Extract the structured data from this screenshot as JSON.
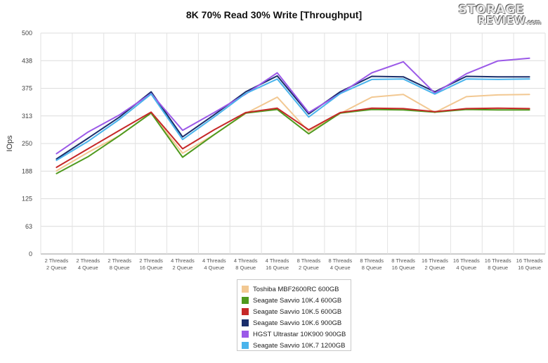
{
  "brand_logo": {
    "line1": "STORAGE",
    "line2": "REVIEW",
    "suffix": ".com"
  },
  "chart_data": {
    "type": "line",
    "title": "8K 70% Read 30% Write [Throughput]",
    "xlabel": "",
    "ylabel": "IOps",
    "ylim": [
      0,
      500
    ],
    "yticks": [
      "0",
      "63",
      "125",
      "188",
      "250",
      "313",
      "375",
      "438",
      "500"
    ],
    "grid": true,
    "legend_position": "bottom",
    "categories": [
      [
        "2 Threads",
        "2 Queue"
      ],
      [
        "2 Threads",
        "4 Queue"
      ],
      [
        "2 Threads",
        "8 Queue"
      ],
      [
        "2 Threads",
        "16 Queue"
      ],
      [
        "4 Threads",
        "2 Queue"
      ],
      [
        "4 Threads",
        "4 Queue"
      ],
      [
        "4 Threads",
        "8 Queue"
      ],
      [
        "4 Threads",
        "16 Queue"
      ],
      [
        "8 Threads",
        "2 Queue"
      ],
      [
        "8 Threads",
        "4 Queue"
      ],
      [
        "8 Threads",
        "8 Queue"
      ],
      [
        "8 Threads",
        "16 Queue"
      ],
      [
        "16 Threads",
        "2 Queue"
      ],
      [
        "16 Threads",
        "4 Queue"
      ],
      [
        "16 Threads",
        "8 Queue"
      ],
      [
        "16 Threads",
        "16 Queue"
      ]
    ],
    "series": [
      {
        "name": "Toshiba MBF2600RC 600GB",
        "color": "#f2c892",
        "values": [
          188,
          230,
          268,
          319,
          228,
          270,
          318,
          355,
          277,
          318,
          355,
          361,
          320,
          356,
          360,
          361
        ]
      },
      {
        "name": "Seagate Savvio 10K.4 600GB",
        "color": "#4f9a1e",
        "values": [
          182,
          220,
          268,
          319,
          219,
          270,
          319,
          327,
          272,
          319,
          327,
          326,
          321,
          327,
          326,
          326
        ]
      },
      {
        "name": "Seagate Savvio 10K.5 600GB",
        "color": "#c62828",
        "values": [
          196,
          238,
          280,
          321,
          238,
          281,
          320,
          330,
          281,
          320,
          330,
          329,
          322,
          329,
          330,
          329
        ]
      },
      {
        "name": "Seagate Savvio 10K.6 900GB",
        "color": "#1a2e6b",
        "values": [
          215,
          262,
          310,
          367,
          265,
          315,
          367,
          403,
          317,
          367,
          402,
          401,
          367,
          402,
          401,
          401
        ]
      },
      {
        "name": "HGST Ultrastar 10K900 900GB",
        "color": "#9b59e8",
        "values": [
          227,
          276,
          315,
          363,
          280,
          320,
          362,
          410,
          320,
          363,
          410,
          435,
          364,
          408,
          437,
          443
        ]
      },
      {
        "name": "Seagate Savvio 10K.7 1200GB",
        "color": "#4ab4ec",
        "values": [
          212,
          255,
          305,
          362,
          259,
          310,
          363,
          396,
          310,
          363,
          395,
          396,
          362,
          396,
          395,
          396
        ]
      }
    ]
  }
}
